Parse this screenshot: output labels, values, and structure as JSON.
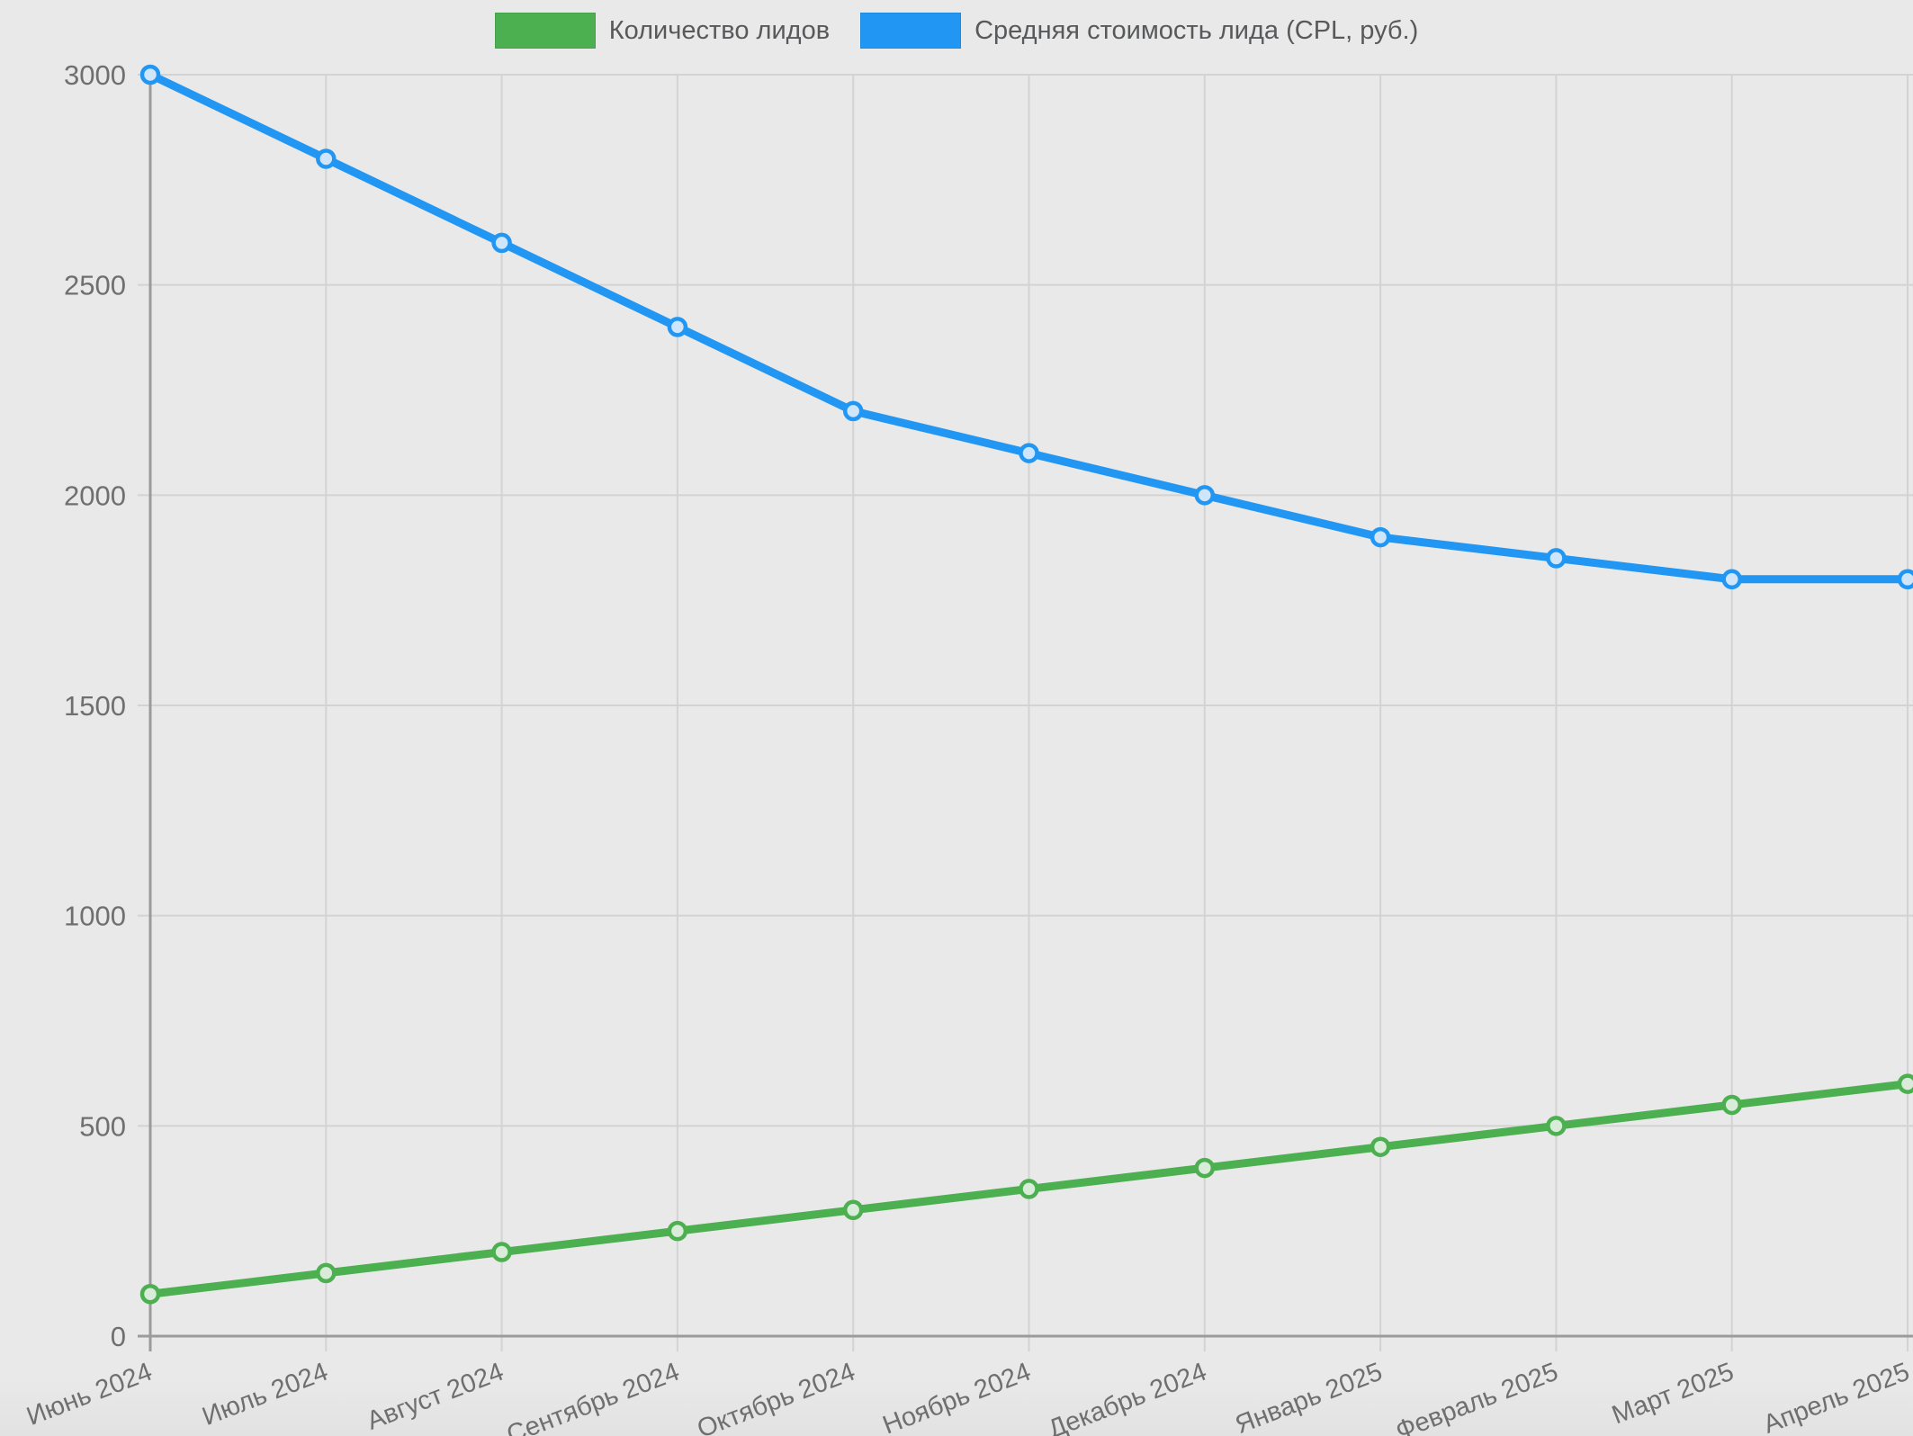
{
  "chart_data": {
    "type": "line",
    "categories": [
      "Июнь 2024",
      "Июль 2024",
      "Август 2024",
      "Сентябрь 2024",
      "Октябрь 2024",
      "Ноябрь 2024",
      "Декабрь 2024",
      "Январь 2025",
      "Февраль 2025",
      "Март 2025",
      "Апрель 2025"
    ],
    "series": [
      {
        "name": "Количество лидов",
        "color": "#4caf50",
        "marker_fill": "#d8ecd9",
        "values": [
          100,
          150,
          200,
          250,
          300,
          350,
          400,
          450,
          500,
          550,
          600
        ]
      },
      {
        "name": "Средняя стоимость лида (CPL, руб.)",
        "color": "#2196f3",
        "marker_fill": "#cfe5f9",
        "values": [
          3000,
          2800,
          2600,
          2400,
          2200,
          2100,
          2000,
          1900,
          1850,
          1800,
          1800
        ]
      }
    ],
    "title": "",
    "xlabel": "",
    "ylabel": "",
    "ylim": [
      0,
      3000
    ],
    "yticks": [
      0,
      500,
      1000,
      1500,
      2000,
      2500,
      3000
    ],
    "grid": true,
    "legend_position": "top",
    "x_label_rotation": -21
  },
  "colors": {
    "background": "#e9e9e9",
    "grid": "#d3d3d3",
    "axis": "#9b9b9b",
    "tick_text": "#6f6f6f"
  }
}
